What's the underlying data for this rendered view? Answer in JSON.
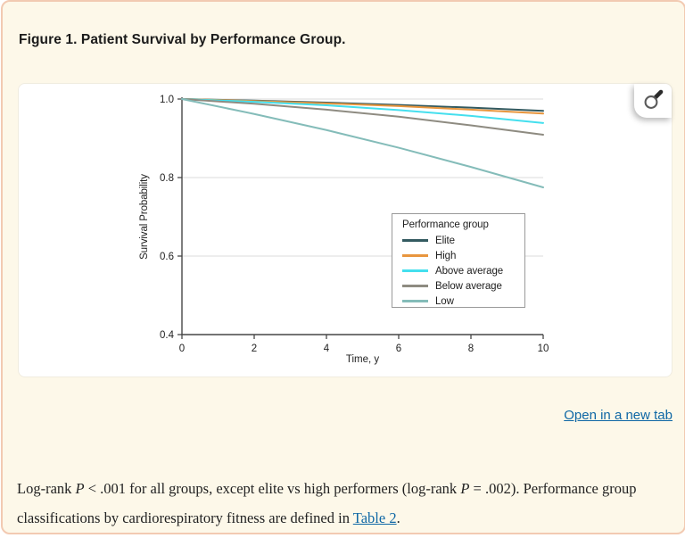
{
  "page": {
    "background": "#fdf8e9",
    "border_color": "#f2cab2",
    "title": "Figure 1. Patient Survival by Performance Group."
  },
  "figure_panel": {
    "zoom_icon": "magnifier-icon",
    "open_link_label": "Open in a new tab",
    "link_color": "#0e67a5"
  },
  "caption": {
    "segments": [
      {
        "text": "Log-rank "
      },
      {
        "text": "P",
        "italic": true
      },
      {
        "text": " < .001 for all groups, except elite vs high performers (log-rank "
      },
      {
        "text": "P",
        "italic": true
      },
      {
        "text": " = .002). Performance group classifications by cardiorespiratory fitness are defined in "
      },
      {
        "text": "Table 2",
        "link": true
      },
      {
        "text": "."
      }
    ]
  },
  "chart_data": {
    "type": "line",
    "title": "",
    "xlabel": "Time, y",
    "ylabel": "Survival Probability",
    "xlim": [
      0,
      10
    ],
    "ylim": [
      0.4,
      1.0
    ],
    "xticks": [
      "0",
      "2",
      "4",
      "6",
      "8",
      "10"
    ],
    "yticks": [
      "1.0",
      "0.8",
      "0.6",
      "0.4"
    ],
    "grid": "horizontal",
    "legend_title": "Performance group",
    "legend_position": "inside lower right",
    "x": [
      0,
      2,
      4,
      6,
      8,
      10
    ],
    "series": [
      {
        "name": "Elite",
        "color": "#335a60",
        "values": [
          1.0,
          0.996,
          0.991,
          0.985,
          0.978,
          0.97
        ]
      },
      {
        "name": "High",
        "color": "#e8963e",
        "values": [
          1.0,
          0.995,
          0.989,
          0.982,
          0.973,
          0.963
        ]
      },
      {
        "name": "Above average",
        "color": "#44dfee",
        "values": [
          1.0,
          0.993,
          0.984,
          0.972,
          0.957,
          0.939
        ]
      },
      {
        "name": "Below average",
        "color": "#8e8b81",
        "values": [
          1.0,
          0.988,
          0.973,
          0.955,
          0.933,
          0.909
        ]
      },
      {
        "name": "Low",
        "color": "#84bcb9",
        "values": [
          1.0,
          0.962,
          0.921,
          0.876,
          0.827,
          0.775
        ]
      }
    ]
  }
}
